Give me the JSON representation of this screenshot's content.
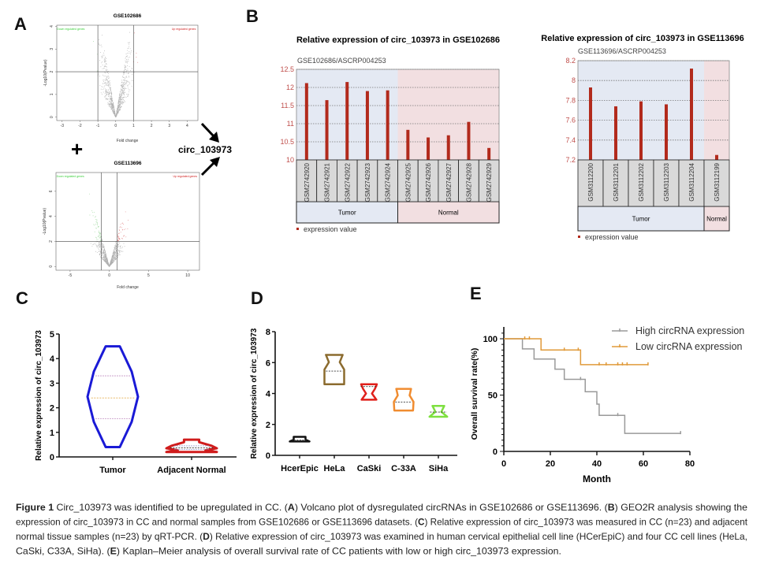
{
  "panels": {
    "a": "A",
    "b": "B",
    "c": "C",
    "d": "D",
    "e": "E"
  },
  "combine": {
    "plus": "+",
    "target": "circ_103973"
  },
  "colors": {
    "bar": "#b22a1c",
    "tumor_bg": "#e4e9f3",
    "normal_bg": "#f2dfe1",
    "sample_box": "#d9d9d9",
    "tick_red": "#c0504d",
    "down_label": "#3ccf3c",
    "up_label": "#d02020",
    "km_high": "#9a9a9a",
    "km_low": "#e09a3a"
  },
  "chart_data": [
    {
      "id": "volcano-gse102686",
      "type": "scatter",
      "title": "GSE102686",
      "xlabel": "Fold change",
      "ylabel": "-Log10(Pvalue)",
      "xlim": [
        -3.3,
        4.6
      ],
      "ylim": [
        -0.15,
        4.05
      ],
      "xticks": [
        -3,
        -2,
        -1,
        0,
        1,
        2,
        3,
        4
      ],
      "yticks": [
        0,
        1,
        2,
        3,
        4
      ],
      "vlines": [
        -1,
        1
      ],
      "hline": 2,
      "annotations": {
        "down": "Down regulated genes",
        "up": "Up regulated genes"
      }
    },
    {
      "id": "volcano-gse113696",
      "type": "scatter",
      "title": "GSE113696",
      "xlabel": "Fold change",
      "ylabel": "-Log10(Pvalue)",
      "xlim": [
        -6.8,
        11.5
      ],
      "ylim": [
        -0.3,
        7.5
      ],
      "xticks": [
        -5,
        0,
        5,
        10
      ],
      "yticks": [
        0,
        2,
        4,
        6
      ],
      "vlines": [
        -1,
        1
      ],
      "hline": 2,
      "annotations": {
        "down": "Down regulated genes",
        "up": "Up regulated genes"
      }
    },
    {
      "id": "geo2r-gse102686",
      "type": "bar",
      "title": "Relative expression of circ_103973 in GSE102686",
      "subtitle": "GSE102686/ASCRP004253",
      "ylim": [
        10,
        12.5
      ],
      "yticks": [
        "10",
        "10.5",
        "11",
        "11.5",
        "12",
        "12.5"
      ],
      "categories": [
        "GSM2742920",
        "GSM2742921",
        "GSM2742922",
        "GSM2742923",
        "GSM2742924",
        "GSM2742925",
        "GSM2742926",
        "GSM2742927",
        "GSM2742928",
        "GSM2742929"
      ],
      "values": [
        12.12,
        11.65,
        12.15,
        11.9,
        11.92,
        10.83,
        10.62,
        10.68,
        11.05,
        10.33
      ],
      "groups": [
        {
          "label": "Tumor",
          "count": 5
        },
        {
          "label": "Normal",
          "count": 5
        }
      ],
      "legend": "expression value",
      "grid": true
    },
    {
      "id": "geo2r-gse113696",
      "type": "bar",
      "title": "Relative expression of circ_103973 in GSE113696",
      "subtitle": "GSE113696/ASCRP004253",
      "ylim": [
        7.2,
        8.2
      ],
      "yticks": [
        "7.2",
        "7.4",
        "7.6",
        "7.8",
        "8",
        "8.2"
      ],
      "categories": [
        "GSM3112200",
        "GSM3112201",
        "GSM3112202",
        "GSM3112203",
        "GSM3112204",
        "GSM3112199"
      ],
      "values": [
        7.93,
        7.74,
        7.79,
        7.76,
        8.12,
        7.25
      ],
      "groups": [
        {
          "label": "Tumor",
          "count": 5
        },
        {
          "label": "Normal",
          "count": 1
        }
      ],
      "legend": "expression value",
      "grid": true
    },
    {
      "id": "violin-tissue",
      "type": "violin",
      "ylabel": "Relative expression of circ_103973",
      "ylim": [
        0,
        5
      ],
      "yticks": [
        0,
        1,
        2,
        3,
        4,
        5
      ],
      "categories": [
        "Tumor",
        "Adjacent Normal"
      ],
      "series": [
        {
          "min": 0.4,
          "q1": 1.55,
          "median": 2.4,
          "q3": 3.3,
          "max": 4.5,
          "color": "#1a1ad6"
        },
        {
          "min": 0.2,
          "q1": 0.3,
          "median": 0.37,
          "q3": 0.45,
          "max": 0.7,
          "color": "#d01c1c"
        }
      ]
    },
    {
      "id": "violin-cell-lines",
      "type": "violin",
      "ylabel": "Relative expression of circ_103973",
      "ylim": [
        0,
        8
      ],
      "yticks": [
        0,
        2,
        4,
        6,
        8
      ],
      "categories": [
        "HcerEpic",
        "HeLa",
        "CaSki",
        "C-33A",
        "SiHa"
      ],
      "series": [
        {
          "min": 0.9,
          "median": 1.0,
          "max": 1.2,
          "color": "#111111"
        },
        {
          "min": 4.6,
          "median": 5.45,
          "max": 6.5,
          "color": "#8b6b2e"
        },
        {
          "min": 3.6,
          "median": 4.45,
          "max": 4.6,
          "color": "#e0201b"
        },
        {
          "min": 2.9,
          "median": 3.45,
          "max": 4.3,
          "color": "#f08c30"
        },
        {
          "min": 2.5,
          "median": 2.8,
          "max": 3.2,
          "color": "#7ee040"
        }
      ]
    },
    {
      "id": "km-survival",
      "type": "line",
      "xlabel": "Month",
      "ylabel": "Overall survival rate(%)",
      "xlim": [
        0,
        80
      ],
      "ylim": [
        0,
        100
      ],
      "xticks": [
        0,
        20,
        40,
        60,
        80
      ],
      "yticks": [
        0,
        50,
        100
      ],
      "legend_position": "top-right",
      "series": [
        {
          "name": "High circRNA expression",
          "color": "#9a9a9a",
          "steps": [
            [
              0,
              100
            ],
            [
              8,
              91
            ],
            [
              13,
              82
            ],
            [
              22,
              73
            ],
            [
              26,
              64
            ],
            [
              35,
              53
            ],
            [
              40,
              42
            ],
            [
              41,
              32
            ],
            [
              52,
              16
            ],
            [
              76,
              16
            ]
          ],
          "censored": [
            [
              33,
              64
            ],
            [
              49,
              32
            ],
            [
              76,
              16
            ]
          ]
        },
        {
          "name": "Low circRNA expression",
          "color": "#e09a3a",
          "steps": [
            [
              0,
              100
            ],
            [
              16,
              90
            ],
            [
              33,
              77
            ],
            [
              62,
              77
            ]
          ],
          "censored": [
            [
              9,
              100
            ],
            [
              11,
              100
            ],
            [
              26,
              90
            ],
            [
              32,
              90
            ],
            [
              41,
              77
            ],
            [
              44,
              77
            ],
            [
              49,
              77
            ],
            [
              51,
              77
            ],
            [
              53,
              77
            ],
            [
              62,
              77
            ]
          ]
        }
      ]
    }
  ],
  "caption": {
    "lines": [
      [
        {
          "t": "Figure 1",
          "b": true
        },
        {
          "t": " Circ_103973 was identified to be upregulated in CC. ("
        },
        {
          "t": "A",
          "b": true
        },
        {
          "t": ") Volcano plot of dysregulated circRNAs in GSE102686 or GSE113696. ("
        },
        {
          "t": "B",
          "b": true
        },
        {
          "t": ") GEO2R analysis showing the"
        }
      ],
      [
        {
          "t": "expression of circ_103973 in CC and normal samples from GSE102686 or GSE113696 datasets. ("
        },
        {
          "t": "C",
          "b": true
        },
        {
          "t": ") Relative expression of circ_103973 was measured in CC (n=23) and adjacent"
        }
      ],
      [
        {
          "t": "normal tissue samples (n=23) by qRT-PCR. ("
        },
        {
          "t": "D",
          "b": true
        },
        {
          "t": ") Relative expression of circ_103973 was examined in human cervical epithelial cell line (HCerEpiC) and four CC cell lines (HeLa,"
        }
      ],
      [
        {
          "t": "CaSki, C33A, SiHa). ("
        },
        {
          "t": "E",
          "b": true
        },
        {
          "t": ") Kaplan–Meier analysis of overall survival rate of CC patients with low or high circ_103973 expression."
        }
      ]
    ]
  }
}
